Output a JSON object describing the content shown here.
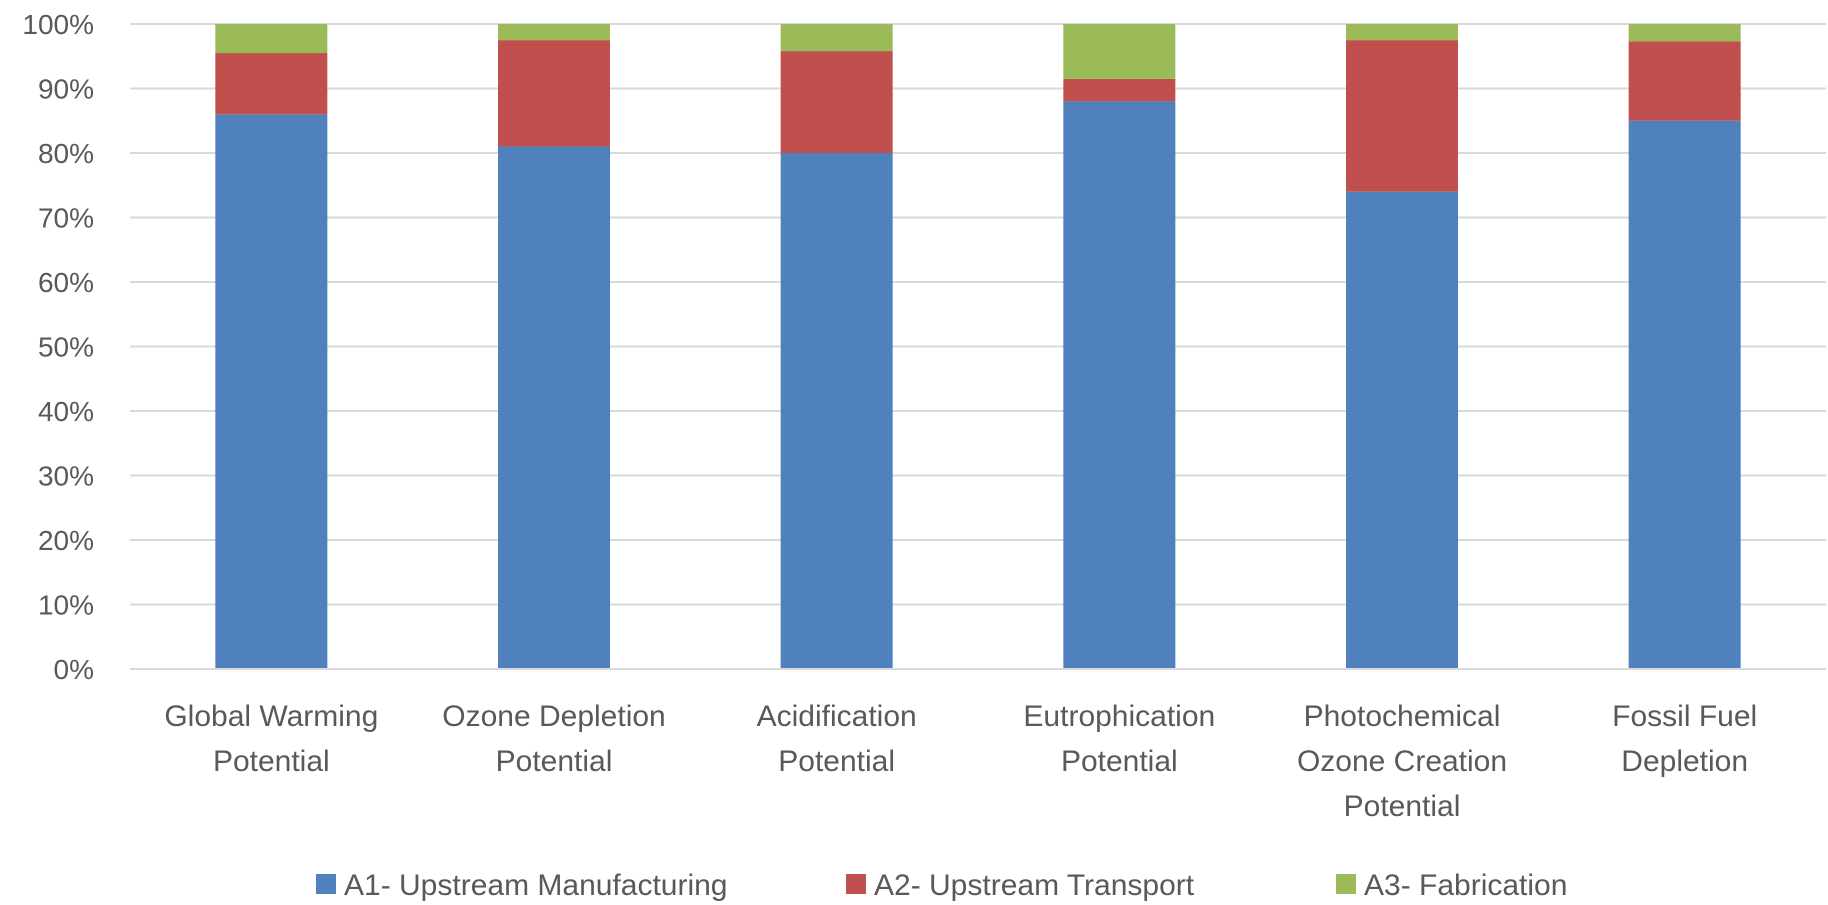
{
  "chart_data": {
    "type": "bar",
    "stacked": true,
    "normalized": true,
    "categories": [
      [
        "Global Warming",
        "Potential"
      ],
      [
        "Ozone Depletion",
        "Potential"
      ],
      [
        "Acidification",
        "Potential"
      ],
      [
        "Eutrophication",
        "Potential"
      ],
      [
        "Photochemical",
        "Ozone Creation",
        "Potential"
      ],
      [
        "Fossil Fuel",
        "Depletion"
      ]
    ],
    "series": [
      {
        "name": "A1- Upstream Manufacturing",
        "color": "#4f81bd",
        "values": [
          86,
          81,
          80,
          88,
          74,
          85
        ]
      },
      {
        "name": "A2- Upstream Transport",
        "color": "#c0504d",
        "values": [
          9.5,
          16.5,
          15.8,
          3.5,
          23.5,
          12.3
        ]
      },
      {
        "name": "A3- Fabrication",
        "color": "#9bbb59",
        "values": [
          4.5,
          2.5,
          4.2,
          8.5,
          2.5,
          2.7
        ]
      }
    ],
    "yticks": [
      "0%",
      "10%",
      "20%",
      "30%",
      "40%",
      "50%",
      "60%",
      "70%",
      "80%",
      "90%",
      "100%"
    ],
    "ylim": [
      0,
      100
    ],
    "grid": true,
    "legend": "bottom",
    "title": "",
    "xlabel": "",
    "ylabel": ""
  }
}
